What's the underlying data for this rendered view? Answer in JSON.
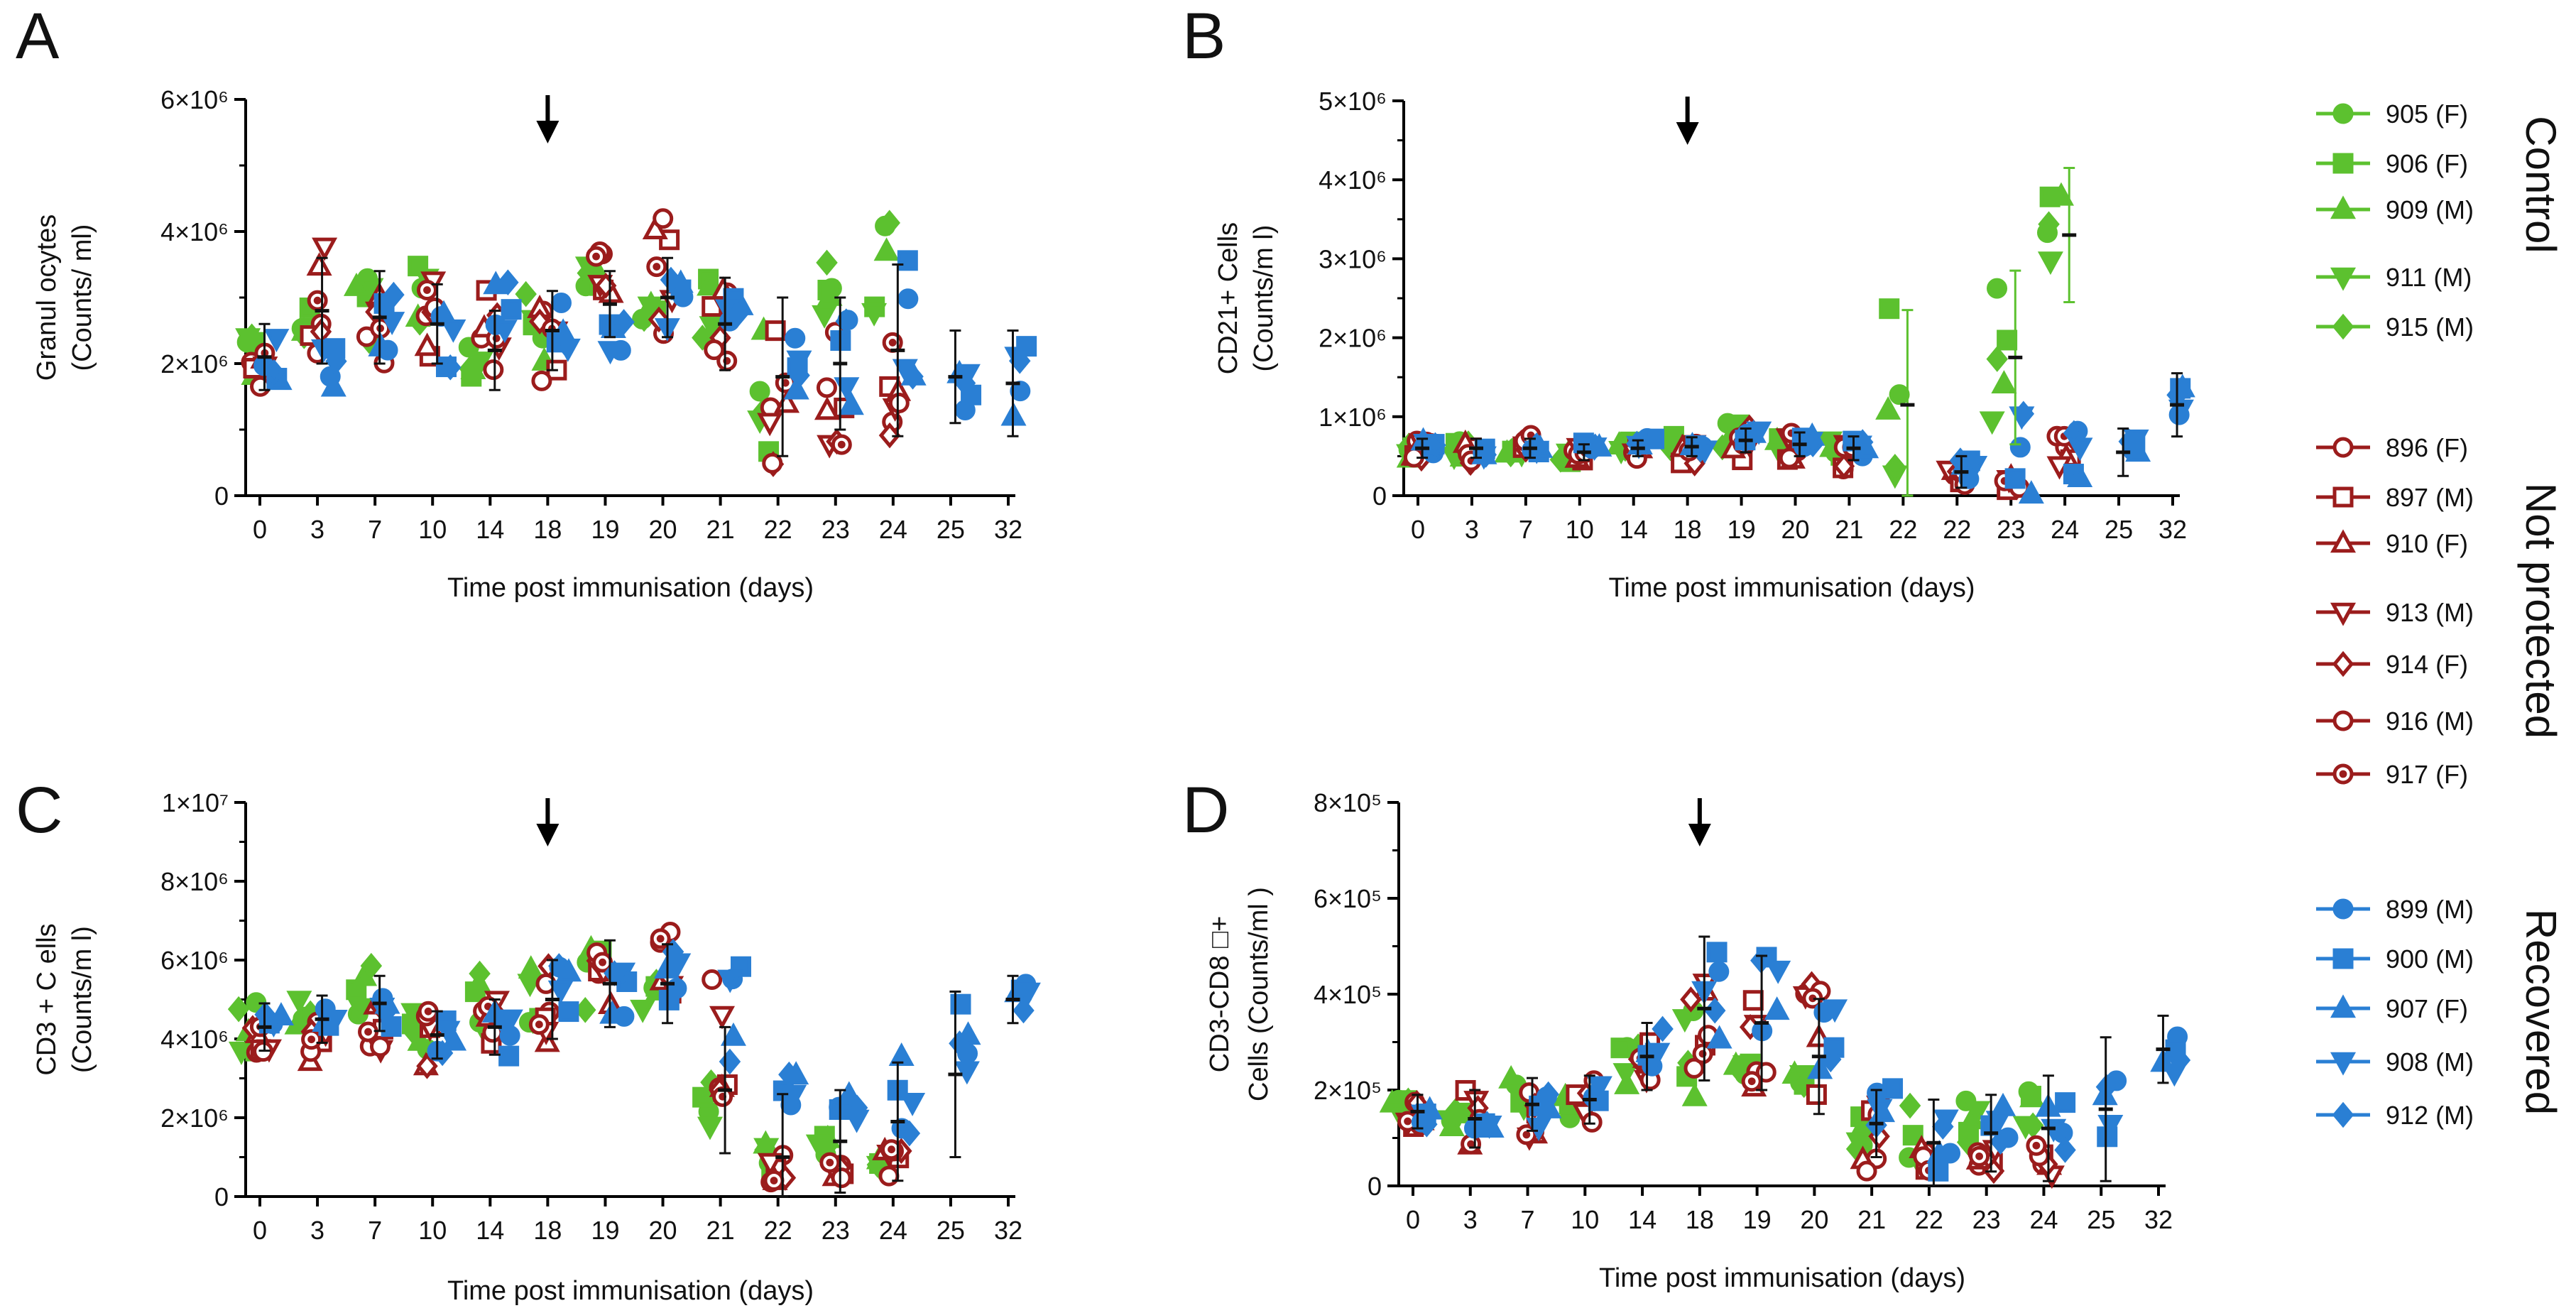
{
  "figure": {
    "legend": {
      "groups": [
        {
          "name": "Control",
          "color": "#5cc12f",
          "filled": true,
          "entries": [
            {
              "label": "905 (F)",
              "marker": "circle"
            },
            {
              "label": "906 (F)",
              "marker": "square"
            },
            {
              "label": "909 (M)",
              "marker": "triangle-up"
            },
            {
              "label": "911 (M)",
              "marker": "triangle-down"
            },
            {
              "label": "915 (M)",
              "marker": "diamond"
            }
          ]
        },
        {
          "name": "Not protected",
          "color": "#9b1c1c",
          "filled": false,
          "entries": [
            {
              "label": "896 (F)",
              "marker": "circle"
            },
            {
              "label": "897 (M)",
              "marker": "square"
            },
            {
              "label": "910 (F)",
              "marker": "triangle-up"
            },
            {
              "label": "913 (M)",
              "marker": "triangle-down"
            },
            {
              "label": "914 (F)",
              "marker": "diamond"
            },
            {
              "label": "916 (M)",
              "marker": "circle-ring"
            },
            {
              "label": "917 (F)",
              "marker": "circle-dot"
            }
          ]
        },
        {
          "name": "Recovered",
          "color": "#2a7fd4",
          "filled": true,
          "entries": [
            {
              "label": "899 (M)",
              "marker": "circle"
            },
            {
              "label": "900 (M)",
              "marker": "square"
            },
            {
              "label": "907 (F)",
              "marker": "triangle-up"
            },
            {
              "label": "908 (M)",
              "marker": "triangle-down"
            },
            {
              "label": "912 (M)",
              "marker": "diamond"
            }
          ]
        }
      ]
    }
  },
  "chart_data": [
    {
      "type": "scatter",
      "panel": "A",
      "xlabel": "Time post immunisation (days)",
      "ylabel_lines": [
        "Granul ocytes",
        "(Counts/ ml)"
      ],
      "categories": [
        "0",
        "3",
        "7",
        "10",
        "14",
        "18",
        "19",
        "20",
        "21",
        "22",
        "23",
        "24",
        "25",
        "32"
      ],
      "arrow_at": "18",
      "ylim": [
        0,
        6000000
      ],
      "yticks": [
        {
          "value": 0,
          "label": "0"
        },
        {
          "value": 2000000,
          "label": "2×10⁶"
        },
        {
          "value": 4000000,
          "label": "4×10⁶"
        },
        {
          "value": 6000000,
          "label": "6×10⁶"
        }
      ],
      "series": [
        {
          "group": "Control",
          "values": [
            2.3,
            2.6,
            2.8,
            3.0,
            2.0,
            2.5,
            3.3,
            2.8,
            2.6,
            1.6,
            3.0,
            3.4,
            null,
            null
          ],
          "spread": [
            0.5,
            0.35,
            0.5,
            0.55,
            0.3,
            0.6,
            0.25,
            0.15,
            0.7,
            1.1,
            0.6,
            0.75,
            null,
            null
          ]
        },
        {
          "group": "Not protected",
          "values": [
            2.0,
            2.9,
            2.6,
            2.6,
            2.6,
            2.3,
            3.0,
            3.3,
            2.7,
            1.6,
            1.6,
            1.6,
            null,
            null
          ],
          "spread": [
            0.35,
            0.9,
            0.8,
            0.75,
            0.75,
            0.65,
            0.75,
            0.9,
            0.8,
            1.15,
            0.95,
            0.85,
            null,
            null
          ]
        },
        {
          "group": "Recovered",
          "values": [
            2.0,
            2.2,
            2.6,
            2.3,
            2.9,
            2.5,
            2.4,
            3.0,
            2.5,
            1.8,
            2.0,
            2.7,
            1.8,
            1.7
          ]
        }
      ],
      "means": [
        2.1,
        2.8,
        2.7,
        2.6,
        2.2,
        2.5,
        2.9,
        3.0,
        2.6,
        1.8,
        2.0,
        2.2,
        1.8,
        1.7
      ],
      "errors": [
        0.5,
        0.8,
        0.7,
        0.6,
        0.6,
        0.6,
        0.5,
        0.6,
        0.7,
        1.2,
        1.0,
        1.3,
        0.7,
        0.8
      ]
    },
    {
      "type": "scatter",
      "panel": "B",
      "xlabel": "Time post immunisation (days)",
      "ylabel_lines": [
        "CD21+  Cells",
        "(Counts/m l)"
      ],
      "categories": [
        "0",
        "3",
        "7",
        "10",
        "14",
        "18",
        "19",
        "20",
        "21",
        "22",
        "22",
        "23",
        "24",
        "25",
        "32"
      ],
      "arrow_at": "18",
      "ylim": [
        0,
        5000000
      ],
      "yticks": [
        {
          "value": 0,
          "label": "0"
        },
        {
          "value": 1000000,
          "label": "1×10⁶"
        },
        {
          "value": 2000000,
          "label": "2×10⁶"
        },
        {
          "value": 3000000,
          "label": "3×10⁶"
        },
        {
          "value": 4000000,
          "label": "4×10⁶"
        },
        {
          "value": 5000000,
          "label": "5×10⁶"
        }
      ],
      "series": [
        {
          "group": "Control",
          "values": [
            0.62,
            0.6,
            0.62,
            0.5,
            0.65,
            0.68,
            0.75,
            0.6,
            0.6,
            1.3,
            null,
            1.5,
            3.3,
            null,
            null
          ],
          "spread": [
            0.15,
            0.12,
            0.1,
            0.1,
            0.08,
            0.1,
            0.2,
            0.2,
            0.1,
            1.2,
            null,
            1.4,
            0.7,
            null,
            null
          ]
        },
        {
          "group": "Not protected",
          "values": [
            0.55,
            0.55,
            0.6,
            0.6,
            0.55,
            0.55,
            0.65,
            0.65,
            0.5,
            null,
            0.25,
            0.15,
            0.55,
            null,
            null
          ],
          "spread": [
            0.15,
            0.15,
            0.2,
            0.15,
            0.1,
            0.15,
            0.25,
            0.2,
            0.2,
            null,
            0.15,
            0.1,
            0.25,
            null,
            null
          ]
        },
        {
          "group": "Recovered",
          "values": [
            0.6,
            0.6,
            0.62,
            0.6,
            0.7,
            0.6,
            0.7,
            0.7,
            0.6,
            null,
            0.35,
            0.4,
            0.85,
            0.5,
            1.2
          ]
        }
      ],
      "means": [
        0.6,
        0.6,
        0.6,
        0.55,
        0.6,
        0.62,
        0.7,
        0.65,
        0.6,
        1.15,
        0.3,
        1.75,
        3.3,
        0.55,
        1.15
      ],
      "errors": [
        0.12,
        0.12,
        0.12,
        0.1,
        0.1,
        0.12,
        0.15,
        0.15,
        0.15,
        1.2,
        0.2,
        1.1,
        0.85,
        0.3,
        0.4
      ]
    },
    {
      "type": "scatter",
      "panel": "C",
      "xlabel": "Time post immunisation (days)",
      "ylabel_lines": [
        "CD3 + C ells",
        "(Counts/m l)"
      ],
      "categories": [
        "0",
        "3",
        "7",
        "10",
        "14",
        "18",
        "19",
        "20",
        "21",
        "22",
        "23",
        "24",
        "25",
        "32"
      ],
      "arrow_at": "18",
      "ylim": [
        0,
        10000000
      ],
      "yticks": [
        {
          "value": 0,
          "label": "0"
        },
        {
          "value": 2000000,
          "label": "2×10⁶"
        },
        {
          "value": 4000000,
          "label": "4×10⁶"
        },
        {
          "value": 6000000,
          "label": "6×10⁶"
        },
        {
          "value": 8000000,
          "label": "8×10⁶"
        },
        {
          "value": 10000000,
          "label": "1×10⁷"
        }
      ],
      "series": [
        {
          "group": "Control",
          "values": [
            4.3,
            4.6,
            5.3,
            4.2,
            4.8,
            5.4,
            5.5,
            5.0,
            2.4,
            0.9,
            1.3,
            0.8,
            null,
            null
          ],
          "spread": [
            0.7,
            0.5,
            0.7,
            0.6,
            0.9,
            1.0,
            1.0,
            0.5,
            1.2,
            0.5,
            0.3,
            0.2,
            null,
            null
          ]
        },
        {
          "group": "Not protected",
          "values": [
            4.0,
            4.0,
            4.3,
            4.0,
            4.4,
            4.9,
            5.2,
            5.8,
            4.2,
            0.7,
            0.6,
            0.8,
            null,
            null
          ],
          "spread": [
            0.4,
            0.6,
            0.6,
            0.7,
            0.7,
            1.0,
            1.3,
            1.5,
            1.7,
            0.4,
            0.3,
            0.4,
            null,
            null
          ]
        },
        {
          "group": "Recovered",
          "values": [
            4.2,
            4.6,
            4.6,
            4.1,
            4.1,
            5.4,
            5.3,
            5.5,
            4.7,
            2.0,
            2.0,
            2.7,
            3.3,
            5.1
          ]
        }
      ],
      "means": [
        4.3,
        4.5,
        4.9,
        4.1,
        4.3,
        5.0,
        5.4,
        5.4,
        2.7,
        1.0,
        1.4,
        1.9,
        3.1,
        5.0
      ],
      "errors": [
        0.6,
        0.6,
        0.7,
        0.6,
        0.7,
        1.0,
        1.1,
        1.0,
        1.6,
        1.6,
        1.3,
        1.5,
        2.1,
        0.6
      ]
    },
    {
      "type": "scatter",
      "panel": "D",
      "xlabel": "Time post immunisation (days)",
      "ylabel_lines": [
        "CD3-CD8 □+",
        "Cells (Counts/ml )"
      ],
      "categories": [
        "0",
        "3",
        "7",
        "10",
        "14",
        "18",
        "19",
        "20",
        "21",
        "22",
        "23",
        "24",
        "25",
        "32"
      ],
      "arrow_at": "18",
      "ylim": [
        0,
        800000
      ],
      "yticks": [
        {
          "value": 0,
          "label": "0"
        },
        {
          "value": 200000,
          "label": "2×10⁵"
        },
        {
          "value": 400000,
          "label": "4×10⁵"
        },
        {
          "value": 600000,
          "label": "6×10⁵"
        },
        {
          "value": 800000,
          "label": "8×10⁵"
        }
      ],
      "series": [
        {
          "group": "Control",
          "values": [
            1.7,
            1.4,
            1.9,
            1.7,
            2.5,
            3.0,
            2.3,
            2.3,
            1.1,
            1.0,
            1.3,
            1.6,
            null,
            null
          ],
          "spread": [
            0.3,
            0.2,
            0.4,
            0.3,
            0.5,
            1.5,
            0.3,
            0.2,
            0.5,
            0.7,
            0.5,
            0.4,
            null,
            null
          ]
        },
        {
          "group": "Not protected",
          "values": [
            1.5,
            1.4,
            1.6,
            1.7,
            2.7,
            3.3,
            3.0,
            3.0,
            1.0,
            0.6,
            0.6,
            0.6,
            null,
            null
          ],
          "spread": [
            0.3,
            0.9,
            0.6,
            0.6,
            0.6,
            1.0,
            1.3,
            1.4,
            0.7,
            0.4,
            0.4,
            0.4,
            null,
            null
          ]
        },
        {
          "group": "Recovered",
          "values": [
            1.4,
            1.4,
            1.5,
            1.8,
            3.0,
            4.2,
            4.3,
            2.8,
            1.7,
            0.8,
            1.2,
            1.6,
            1.5,
            2.9
          ]
        }
      ],
      "means": [
        1.55,
        1.4,
        1.7,
        1.8,
        2.7,
        3.7,
        3.4,
        2.7,
        1.3,
        0.9,
        1.1,
        1.2,
        1.6,
        2.85
      ],
      "errors": [
        0.35,
        0.6,
        0.55,
        0.5,
        0.7,
        1.5,
        1.4,
        1.2,
        0.7,
        0.9,
        0.8,
        1.1,
        1.5,
        0.7
      ]
    }
  ]
}
